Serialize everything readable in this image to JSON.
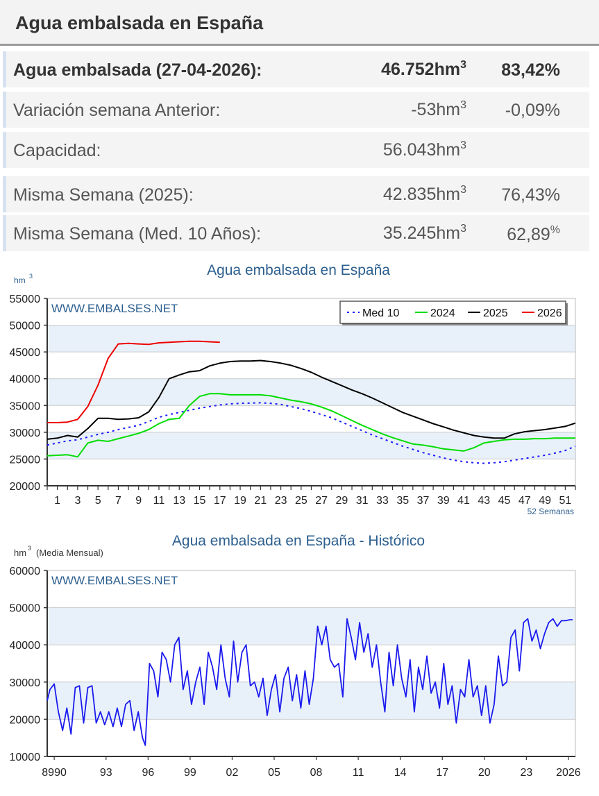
{
  "header": {
    "title": "Agua embalsada en España"
  },
  "stats": {
    "rows": [
      {
        "label": "Agua embalsada (27-04-2026):",
        "value": "46.752",
        "unit": "hm",
        "unit_exp": "3",
        "percent": "83,42",
        "percent_sign": "%"
      },
      {
        "label": "Variación semana Anterior:",
        "value": "-53",
        "unit": "hm",
        "unit_exp": "3",
        "percent": "-0,09",
        "percent_sign": "%"
      },
      {
        "label": "Capacidad:",
        "value": "56.043",
        "unit": "hm",
        "unit_exp": "3",
        "percent": "",
        "percent_sign": ""
      },
      {
        "label": "Misma Semana (2025):",
        "value": "42.835",
        "unit": "hm",
        "unit_exp": "3",
        "percent": "76,43",
        "percent_sign": "%"
      },
      {
        "label": "Misma Semana (Med. 10 Años):",
        "value": "35.245",
        "unit": "hm",
        "unit_exp": "3",
        "percent": "62,89",
        "percent_sign": "%"
      }
    ]
  },
  "colors": {
    "band": "#e8f1fa",
    "axis": "#333333",
    "title": "#2c5f8f",
    "watermark": "#2c5f8f",
    "med10": "#1a1aff",
    "s2024": "#00dd00",
    "s2025": "#000000",
    "s2026": "#ee0000",
    "historic": "#1a1aee"
  },
  "chart_data": [
    {
      "type": "line",
      "title": "Agua embalsada en España",
      "ylabel": "hm",
      "ylabel_exp": "3",
      "xlabel": "52 Semanas",
      "watermark": "WWW.EMBALSES.NET",
      "ylim": [
        20000,
        55000
      ],
      "yticks": [
        20000,
        25000,
        30000,
        35000,
        40000,
        45000,
        50000,
        55000
      ],
      "xlim": [
        0,
        52
      ],
      "xticks": [
        1,
        3,
        5,
        7,
        9,
        11,
        13,
        15,
        17,
        19,
        21,
        23,
        25,
        27,
        29,
        31,
        33,
        35,
        37,
        39,
        41,
        43,
        45,
        47,
        49,
        51
      ],
      "legend": {
        "placement": "top-right"
      },
      "series": [
        {
          "name": "Med 10",
          "style": "dotted",
          "color": "#1a1aff",
          "x": [
            0,
            1,
            2,
            3,
            4,
            5,
            6,
            7,
            8,
            9,
            10,
            11,
            12,
            13,
            14,
            15,
            16,
            17,
            18,
            19,
            20,
            21,
            22,
            23,
            24,
            25,
            26,
            27,
            28,
            29,
            30,
            31,
            32,
            33,
            34,
            35,
            36,
            37,
            38,
            39,
            40,
            41,
            42,
            43,
            44,
            45,
            46,
            47,
            48,
            49,
            50,
            51,
            52
          ],
          "values": [
            27600,
            28000,
            28400,
            28600,
            29100,
            29600,
            30000,
            30500,
            30900,
            31300,
            32000,
            32800,
            33300,
            33700,
            34100,
            34500,
            34800,
            35100,
            35300,
            35400,
            35450,
            35500,
            35400,
            35200,
            34800,
            34400,
            33900,
            33300,
            32700,
            31900,
            31100,
            30300,
            29500,
            28800,
            28100,
            27400,
            26800,
            26200,
            25700,
            25200,
            24800,
            24500,
            24300,
            24200,
            24300,
            24500,
            24800,
            25100,
            25400,
            25700,
            26100,
            26600,
            27400
          ]
        },
        {
          "name": "2024",
          "style": "solid",
          "color": "#00dd00",
          "x": [
            0,
            1,
            2,
            3,
            4,
            5,
            6,
            7,
            8,
            9,
            10,
            11,
            12,
            13,
            14,
            15,
            16,
            17,
            18,
            19,
            20,
            21,
            22,
            23,
            24,
            25,
            26,
            27,
            28,
            29,
            30,
            31,
            32,
            33,
            34,
            35,
            36,
            37,
            38,
            39,
            40,
            41,
            42,
            43,
            44,
            45,
            46,
            47,
            48,
            49,
            50,
            51,
            52
          ],
          "values": [
            25600,
            25700,
            25800,
            25400,
            28000,
            28500,
            28300,
            28800,
            29300,
            29800,
            30500,
            31600,
            32400,
            32600,
            35000,
            36700,
            37200,
            37200,
            37000,
            37000,
            37000,
            37000,
            36800,
            36400,
            36000,
            35700,
            35300,
            34700,
            34000,
            33100,
            32200,
            31300,
            30500,
            29700,
            29000,
            28400,
            27800,
            27600,
            27300,
            26900,
            26700,
            26500,
            27100,
            28000,
            28300,
            28600,
            28700,
            28700,
            28800,
            28800,
            28900,
            28900,
            28900
          ]
        },
        {
          "name": "2025",
          "style": "solid",
          "color": "#000000",
          "x": [
            0,
            1,
            2,
            3,
            4,
            5,
            6,
            7,
            8,
            9,
            10,
            11,
            12,
            13,
            14,
            15,
            16,
            17,
            18,
            19,
            20,
            21,
            22,
            23,
            24,
            25,
            26,
            27,
            28,
            29,
            30,
            31,
            32,
            33,
            34,
            35,
            36,
            37,
            38,
            39,
            40,
            41,
            42,
            43,
            44,
            45,
            46,
            47,
            48,
            49,
            50,
            51,
            52
          ],
          "values": [
            28700,
            28900,
            29400,
            29100,
            30700,
            32600,
            32600,
            32400,
            32500,
            32700,
            33800,
            36500,
            40000,
            40700,
            41300,
            41500,
            42400,
            42900,
            43200,
            43300,
            43300,
            43400,
            43200,
            42900,
            42500,
            41900,
            41200,
            40300,
            39500,
            38700,
            37900,
            37200,
            36400,
            35500,
            34600,
            33700,
            33000,
            32300,
            31600,
            31000,
            30400,
            29900,
            29400,
            29100,
            28900,
            28900,
            29700,
            30100,
            30300,
            30500,
            30800,
            31100,
            31700
          ]
        },
        {
          "name": "2026",
          "style": "solid",
          "color": "#ee0000",
          "x": [
            0,
            1,
            2,
            3,
            4,
            5,
            6,
            7,
            8,
            9,
            10,
            11,
            12,
            13,
            14,
            15,
            16,
            17
          ],
          "values": [
            31800,
            31800,
            31900,
            32400,
            34800,
            38800,
            43800,
            46500,
            46600,
            46500,
            46400,
            46700,
            46800,
            46900,
            47000,
            47000,
            46900,
            46800
          ]
        }
      ]
    },
    {
      "type": "line",
      "title": "Agua embalsada en España - Histórico",
      "ylabel": "hm",
      "ylabel_exp": "3",
      "ylabel_note": "(Media Mensual)",
      "watermark": "WWW.EMBALSES.NET",
      "ylim": [
        10000,
        60000
      ],
      "yticks": [
        10000,
        20000,
        30000,
        40000,
        50000,
        60000
      ],
      "xlim": [
        1988.8,
        2026.5
      ],
      "xtick_labels": [
        {
          "x": 1989.3,
          "label": "8990"
        },
        {
          "x": 1993,
          "label": "93"
        },
        {
          "x": 1996,
          "label": "96"
        },
        {
          "x": 1999,
          "label": "99"
        },
        {
          "x": 2002,
          "label": "02"
        },
        {
          "x": 2005,
          "label": "05"
        },
        {
          "x": 2008,
          "label": "08"
        },
        {
          "x": 2011,
          "label": "11"
        },
        {
          "x": 2014,
          "label": "14"
        },
        {
          "x": 2017,
          "label": "17"
        },
        {
          "x": 2020,
          "label": "20"
        },
        {
          "x": 2023,
          "label": "23"
        },
        {
          "x": 2026,
          "label": "2026"
        }
      ],
      "series": [
        {
          "name": "Histórico",
          "color": "#1a1aee",
          "x": [
            1988.8,
            1989.0,
            1989.3,
            1989.6,
            1989.9,
            1990.2,
            1990.5,
            1990.8,
            1991.1,
            1991.4,
            1991.7,
            1992.0,
            1992.3,
            1992.6,
            1992.9,
            1993.2,
            1993.5,
            1993.8,
            1994.1,
            1994.4,
            1994.7,
            1995.0,
            1995.3,
            1995.6,
            1995.8,
            1996.1,
            1996.4,
            1996.7,
            1997.0,
            1997.3,
            1997.6,
            1997.9,
            1998.2,
            1998.5,
            1998.8,
            1999.1,
            1999.4,
            1999.7,
            2000.0,
            2000.3,
            2000.6,
            2000.9,
            2001.2,
            2001.5,
            2001.8,
            2002.1,
            2002.4,
            2002.7,
            2003.0,
            2003.3,
            2003.6,
            2003.9,
            2004.2,
            2004.5,
            2004.8,
            2005.1,
            2005.4,
            2005.7,
            2006.0,
            2006.3,
            2006.6,
            2006.9,
            2007.2,
            2007.5,
            2007.8,
            2008.1,
            2008.4,
            2008.7,
            2009.0,
            2009.3,
            2009.6,
            2009.9,
            2010.2,
            2010.5,
            2010.8,
            2011.1,
            2011.4,
            2011.7,
            2012.0,
            2012.3,
            2012.6,
            2012.9,
            2013.2,
            2013.5,
            2013.8,
            2014.1,
            2014.4,
            2014.7,
            2015.0,
            2015.3,
            2015.6,
            2015.9,
            2016.2,
            2016.5,
            2016.8,
            2017.1,
            2017.4,
            2017.7,
            2018.0,
            2018.3,
            2018.6,
            2018.9,
            2019.2,
            2019.5,
            2019.8,
            2020.1,
            2020.4,
            2020.7,
            2021.0,
            2021.3,
            2021.6,
            2021.9,
            2022.2,
            2022.5,
            2022.8,
            2023.1,
            2023.4,
            2023.7,
            2024.0,
            2024.3,
            2024.6,
            2024.9,
            2025.2,
            2025.5,
            2025.8,
            2026.1,
            2026.3
          ],
          "values": [
            25000,
            28000,
            29500,
            22000,
            17000,
            23000,
            16000,
            28500,
            29000,
            19000,
            28500,
            29000,
            19000,
            22000,
            18500,
            22000,
            18000,
            23000,
            18000,
            24000,
            25000,
            17000,
            22000,
            15000,
            13000,
            35000,
            33000,
            26000,
            38000,
            36000,
            30000,
            40000,
            42000,
            28000,
            33000,
            24000,
            30000,
            34000,
            24000,
            38000,
            34000,
            28000,
            40000,
            31000,
            26000,
            41000,
            30000,
            38000,
            40000,
            29000,
            30000,
            26000,
            31000,
            21000,
            28000,
            32000,
            22000,
            31000,
            34000,
            25000,
            32000,
            23000,
            33000,
            24000,
            31000,
            45000,
            40000,
            45000,
            36000,
            34000,
            35000,
            26000,
            47000,
            42000,
            36000,
            46000,
            38000,
            43000,
            34000,
            40000,
            30000,
            22000,
            38000,
            29000,
            40000,
            31000,
            26000,
            36000,
            22000,
            34000,
            28000,
            37000,
            27000,
            30000,
            23000,
            35000,
            24000,
            29000,
            19000,
            28000,
            26000,
            36000,
            26000,
            29000,
            21000,
            29000,
            19000,
            24000,
            37000,
            29000,
            30000,
            42000,
            44000,
            33000,
            46000,
            47000,
            41000,
            44000,
            39000,
            43000,
            46000,
            47000,
            45000,
            46500,
            46500,
            46752,
            46752
          ]
        }
      ]
    }
  ]
}
